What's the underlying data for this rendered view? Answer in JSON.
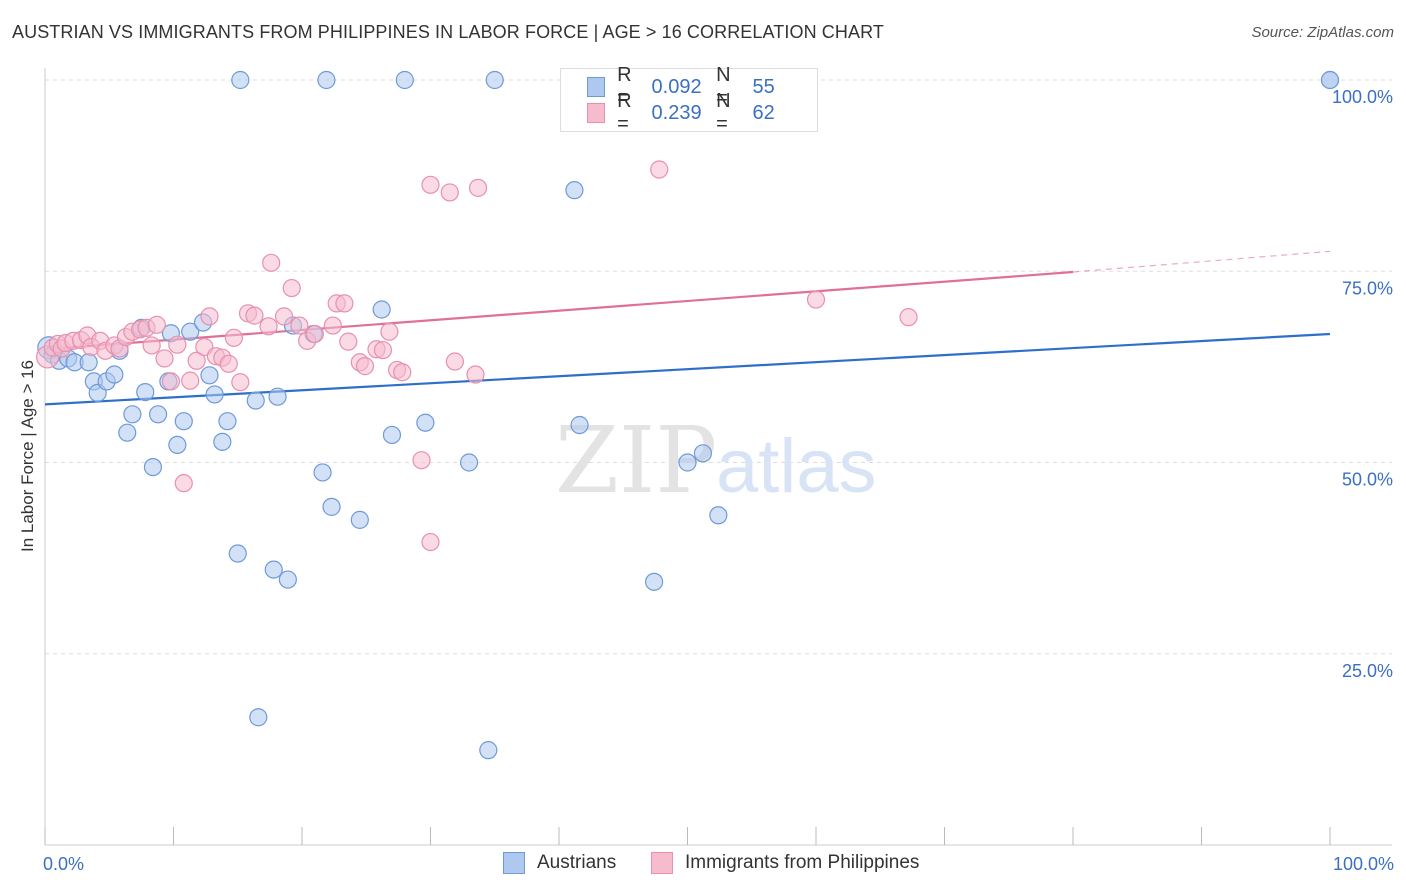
{
  "header": {
    "title": "AUSTRIAN VS IMMIGRANTS FROM PHILIPPINES IN LABOR FORCE | AGE > 16 CORRELATION CHART",
    "source": "Source: ZipAtlas.com"
  },
  "watermark": {
    "zip": "ZIP",
    "atlas": "atlas"
  },
  "legend_top": {
    "rows": [
      {
        "r_label": "R =",
        "r_value": "0.092",
        "n_label": "N =",
        "n_value": "55"
      },
      {
        "r_label": "R =",
        "r_value": "0.239",
        "n_label": "N =",
        "n_value": "62"
      }
    ]
  },
  "legend_bottom": {
    "items": [
      "Austrians",
      "Immigrants from Philippines"
    ]
  },
  "colors": {
    "blue_fill": "#aec8ef",
    "blue_stroke": "#6f9ad9",
    "blue_line": "#2f6fcc",
    "pink_fill": "#f6bccd",
    "pink_stroke": "#e890ad",
    "pink_line": "#e0709a",
    "tick_label": "#3a6fc4",
    "grid": "#dddddd"
  },
  "chart_data": {
    "type": "scatter",
    "title": "AUSTRIAN VS IMMIGRANTS FROM PHILIPPINES IN LABOR FORCE | AGE > 16 CORRELATION CHART",
    "xlabel": "",
    "ylabel": "In Labor Force | Age > 16",
    "xlim": [
      0,
      100
    ],
    "ylim": [
      0,
      100
    ],
    "x_tick_labels": [
      {
        "value": 0,
        "label": "0.0%"
      },
      {
        "value": 100,
        "label": "100.0%"
      }
    ],
    "y_tick_labels": [
      {
        "value": 25,
        "label": "25.0%"
      },
      {
        "value": 50,
        "label": "50.0%"
      },
      {
        "value": 75,
        "label": "75.0%"
      },
      {
        "value": 100,
        "label": "100.0%"
      }
    ],
    "grid": true,
    "legend_position": "bottom",
    "series": [
      {
        "name": "Austrians",
        "color": "#aec8ef",
        "r": 0.092,
        "n": 55,
        "trend": {
          "x": [
            0,
            100
          ],
          "y": [
            57.6,
            66.8
          ]
        },
        "points": [
          [
            0.3,
            65.0
          ],
          [
            0.6,
            64.1
          ],
          [
            1.1,
            63.3
          ],
          [
            1.8,
            63.6
          ],
          [
            2.3,
            63.1
          ],
          [
            3.4,
            63.1
          ],
          [
            3.8,
            60.6
          ],
          [
            4.1,
            59.1
          ],
          [
            4.8,
            60.6
          ],
          [
            5.4,
            61.5
          ],
          [
            5.8,
            64.6
          ],
          [
            6.4,
            53.9
          ],
          [
            6.8,
            56.3
          ],
          [
            7.5,
            67.6
          ],
          [
            7.8,
            59.2
          ],
          [
            8.4,
            49.4
          ],
          [
            8.8,
            56.3
          ],
          [
            9.6,
            60.6
          ],
          [
            9.8,
            66.9
          ],
          [
            10.3,
            52.3
          ],
          [
            10.8,
            55.4
          ],
          [
            11.3,
            67.1
          ],
          [
            12.3,
            68.3
          ],
          [
            12.8,
            61.4
          ],
          [
            13.2,
            58.9
          ],
          [
            13.8,
            52.7
          ],
          [
            14.2,
            55.4
          ],
          [
            15.2,
            100.0
          ],
          [
            16.4,
            58.1
          ],
          [
            15.0,
            38.1
          ],
          [
            16.6,
            16.7
          ],
          [
            17.8,
            36.0
          ],
          [
            18.1,
            58.6
          ],
          [
            18.9,
            34.7
          ],
          [
            19.3,
            67.9
          ],
          [
            20.9,
            66.8
          ],
          [
            21.6,
            48.7
          ],
          [
            22.3,
            44.2
          ],
          [
            24.5,
            42.5
          ],
          [
            21.9,
            100.0
          ],
          [
            26.2,
            70.0
          ],
          [
            27.0,
            53.6
          ],
          [
            28.0,
            100.0
          ],
          [
            29.6,
            55.2
          ],
          [
            33.0,
            50.0
          ],
          [
            34.5,
            12.4
          ],
          [
            35.0,
            100.0
          ],
          [
            41.2,
            85.6
          ],
          [
            41.6,
            54.9
          ],
          [
            47.4,
            34.4
          ],
          [
            50.0,
            50.0
          ],
          [
            51.2,
            51.2
          ],
          [
            52.4,
            43.1
          ],
          [
            100.0,
            100.0
          ],
          [
            100.0,
            100.0
          ]
        ]
      },
      {
        "name": "Immigrants from Philippines",
        "color": "#f6bccd",
        "r": 0.239,
        "n": 62,
        "trend": {
          "x": [
            0,
            80
          ],
          "y": [
            64.8,
            74.9
          ]
        },
        "trend_dashed": {
          "x": [
            80,
            100
          ],
          "y": [
            74.9,
            77.6
          ]
        },
        "points": [
          [
            0.2,
            63.8
          ],
          [
            0.6,
            65.0
          ],
          [
            1.0,
            65.5
          ],
          [
            1.3,
            64.9
          ],
          [
            1.6,
            65.6
          ],
          [
            2.2,
            65.9
          ],
          [
            2.8,
            66.0
          ],
          [
            3.3,
            66.6
          ],
          [
            3.6,
            65.1
          ],
          [
            4.3,
            65.9
          ],
          [
            4.7,
            64.6
          ],
          [
            5.4,
            65.3
          ],
          [
            5.8,
            64.9
          ],
          [
            6.3,
            66.4
          ],
          [
            6.8,
            67.1
          ],
          [
            7.4,
            67.4
          ],
          [
            7.9,
            67.6
          ],
          [
            8.3,
            65.3
          ],
          [
            8.7,
            68.0
          ],
          [
            9.3,
            63.6
          ],
          [
            9.8,
            60.6
          ],
          [
            10.3,
            65.4
          ],
          [
            10.8,
            47.3
          ],
          [
            11.3,
            60.7
          ],
          [
            11.8,
            63.3
          ],
          [
            12.4,
            65.1
          ],
          [
            12.8,
            69.1
          ],
          [
            13.3,
            63.9
          ],
          [
            13.8,
            63.7
          ],
          [
            14.3,
            62.9
          ],
          [
            14.7,
            66.3
          ],
          [
            15.2,
            60.5
          ],
          [
            15.8,
            69.5
          ],
          [
            16.3,
            69.2
          ],
          [
            17.4,
            67.8
          ],
          [
            17.6,
            76.1
          ],
          [
            18.6,
            69.1
          ],
          [
            19.2,
            72.8
          ],
          [
            19.8,
            67.9
          ],
          [
            20.4,
            65.9
          ],
          [
            21.0,
            66.8
          ],
          [
            22.4,
            67.9
          ],
          [
            22.7,
            70.8
          ],
          [
            23.3,
            70.8
          ],
          [
            23.6,
            65.8
          ],
          [
            24.5,
            63.1
          ],
          [
            24.9,
            62.6
          ],
          [
            25.8,
            64.8
          ],
          [
            26.3,
            64.7
          ],
          [
            26.8,
            67.1
          ],
          [
            27.4,
            62.1
          ],
          [
            27.8,
            61.8
          ],
          [
            29.3,
            50.3
          ],
          [
            30.0,
            39.6
          ],
          [
            30.0,
            86.3
          ],
          [
            31.5,
            85.3
          ],
          [
            31.9,
            63.2
          ],
          [
            33.5,
            61.5
          ],
          [
            33.7,
            85.9
          ],
          [
            47.8,
            88.3
          ],
          [
            60.0,
            71.3
          ],
          [
            67.2,
            69.0
          ]
        ]
      }
    ]
  }
}
